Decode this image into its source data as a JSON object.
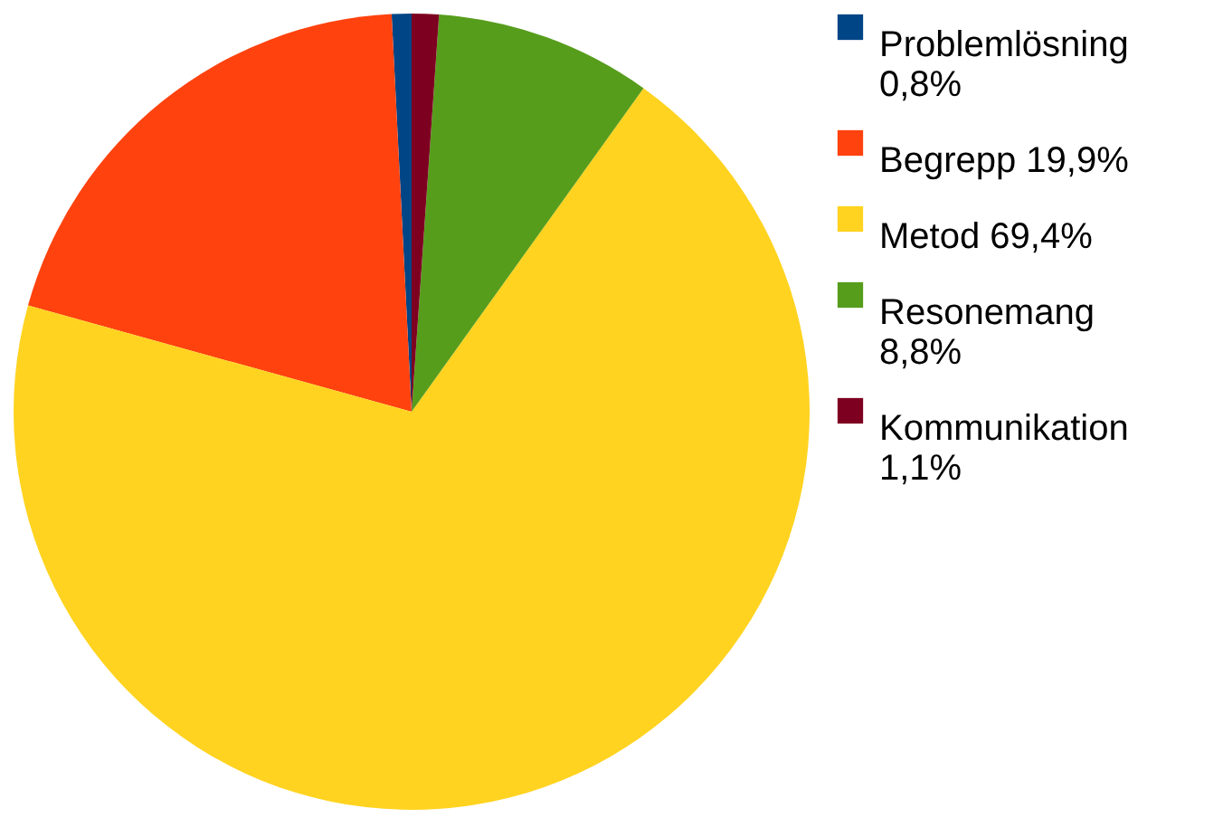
{
  "chart_data": {
    "type": "pie",
    "categories": [
      "Problemlösning 0,8%",
      "Begrepp 19,9%",
      "Metod 69,4%",
      "Resonemang 8,8%",
      "Kommunikation 1,1%"
    ],
    "values": [
      0.8,
      19.9,
      69.4,
      8.8,
      1.1
    ],
    "colors": [
      "#004586",
      "#ff420e",
      "#ffd320",
      "#579d1c",
      "#7e0021"
    ],
    "legend": "right"
  }
}
